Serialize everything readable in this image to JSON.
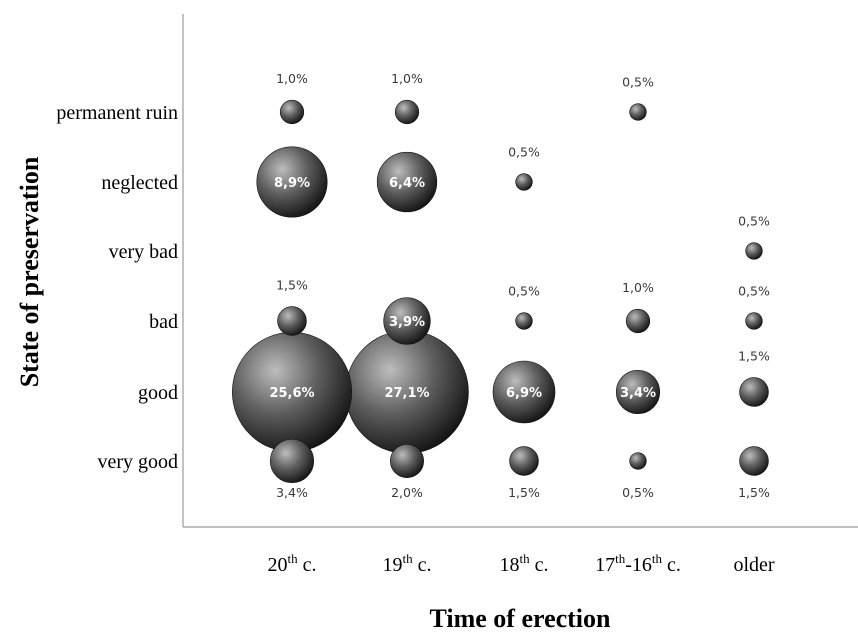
{
  "chart_data": {
    "type": "bubble",
    "title": "",
    "xlabel": "Time of erection",
    "ylabel": "State of preservation",
    "x_categories": [
      "20th c.",
      "19th c.",
      "18th c.",
      "17th-16th c.",
      "older"
    ],
    "x_tick_labels": [
      {
        "base": "20",
        "sup": "th",
        "rest": " c."
      },
      {
        "base": "19",
        "sup": "th",
        "rest": " c."
      },
      {
        "base": "18",
        "sup": "th",
        "rest": " c."
      },
      {
        "base": "17",
        "sup": "th",
        "mid": "-16",
        "sup2": "th",
        "rest": " c."
      },
      {
        "base": "older"
      }
    ],
    "y_categories": [
      "very good",
      "good",
      "bad",
      "very bad",
      "neglected",
      "permanent ruin"
    ],
    "unit": "%",
    "points": [
      {
        "x": "20th c.",
        "y": "permanent ruin",
        "value": 1.0,
        "label": "1,0%",
        "label_pos": "above"
      },
      {
        "x": "19th c.",
        "y": "permanent ruin",
        "value": 1.0,
        "label": "1,0%",
        "label_pos": "above"
      },
      {
        "x": "17th-16th c.",
        "y": "permanent ruin",
        "value": 0.5,
        "label": "0,5%",
        "label_pos": "above"
      },
      {
        "x": "20th c.",
        "y": "neglected",
        "value": 8.9,
        "label": "8,9%",
        "label_pos": "inside"
      },
      {
        "x": "19th c.",
        "y": "neglected",
        "value": 6.4,
        "label": "6,4%",
        "label_pos": "inside"
      },
      {
        "x": "18th c.",
        "y": "neglected",
        "value": 0.5,
        "label": "0,5%",
        "label_pos": "above"
      },
      {
        "x": "older",
        "y": "very bad",
        "value": 0.5,
        "label": "0,5%",
        "label_pos": "above"
      },
      {
        "x": "20th c.",
        "y": "bad",
        "value": 1.5,
        "label": "1,5%",
        "label_pos": "above"
      },
      {
        "x": "19th c.",
        "y": "bad",
        "value": 3.9,
        "label": "3,9%",
        "label_pos": "inside"
      },
      {
        "x": "18th c.",
        "y": "bad",
        "value": 0.5,
        "label": "0,5%",
        "label_pos": "above"
      },
      {
        "x": "17th-16th c.",
        "y": "bad",
        "value": 1.0,
        "label": "1,0%",
        "label_pos": "above"
      },
      {
        "x": "older",
        "y": "bad",
        "value": 0.5,
        "label": "0,5%",
        "label_pos": "above"
      },
      {
        "x": "20th c.",
        "y": "good",
        "value": 25.6,
        "label": "25,6%",
        "label_pos": "inside"
      },
      {
        "x": "19th c.",
        "y": "good",
        "value": 27.1,
        "label": "27,1%",
        "label_pos": "inside"
      },
      {
        "x": "18th c.",
        "y": "good",
        "value": 6.9,
        "label": "6,9%",
        "label_pos": "inside"
      },
      {
        "x": "17th-16th c.",
        "y": "good",
        "value": 3.4,
        "label": "3,4%",
        "label_pos": "inside"
      },
      {
        "x": "older",
        "y": "good",
        "value": 1.5,
        "label": "1,5%",
        "label_pos": "above"
      },
      {
        "x": "20th c.",
        "y": "very good",
        "value": 3.4,
        "label": "3,4%",
        "label_pos": "below"
      },
      {
        "x": "19th c.",
        "y": "very good",
        "value": 2.0,
        "label": "2,0%",
        "label_pos": "below"
      },
      {
        "x": "18th c.",
        "y": "very good",
        "value": 1.5,
        "label": "1,5%",
        "label_pos": "below"
      },
      {
        "x": "17th-16th c.",
        "y": "very good",
        "value": 0.5,
        "label": "0,5%",
        "label_pos": "below"
      },
      {
        "x": "older",
        "y": "very good",
        "value": 1.5,
        "label": "1,5%",
        "label_pos": "below"
      }
    ],
    "grid": false,
    "legend": "none",
    "colors": {
      "bubble_light": "#b8b8b8",
      "bubble_mid": "#5a5a5a",
      "bubble_dark": "#141414",
      "inside_label": "#ffffff",
      "outside_label": "#3a3a3a",
      "axis": "#999999"
    }
  }
}
